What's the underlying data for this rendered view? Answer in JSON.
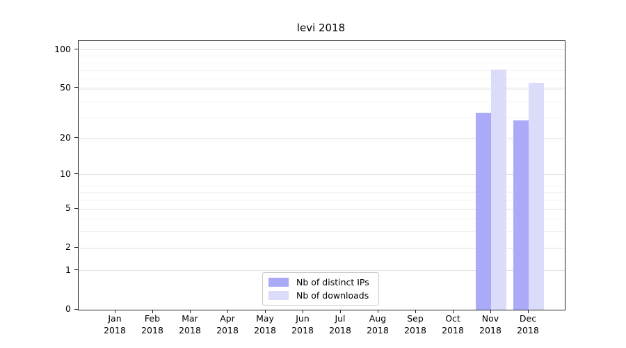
{
  "title": "levi 2018",
  "chart_data": {
    "type": "bar",
    "title": "levi 2018",
    "categories": [
      "Jan",
      "Feb",
      "Mar",
      "Apr",
      "May",
      "Jun",
      "Jul",
      "Aug",
      "Sep",
      "Oct",
      "Nov",
      "Dec"
    ],
    "year_label": "2018",
    "series": [
      {
        "name": "Nb of distinct IPs",
        "color": "#aaaaf8",
        "values": [
          0,
          0,
          0,
          0,
          0,
          0,
          0,
          0,
          0,
          0,
          32,
          28
        ]
      },
      {
        "name": "Nb of downloads",
        "color": "#dbdbfa",
        "values": [
          0,
          0,
          0,
          0,
          0,
          0,
          0,
          0,
          0,
          0,
          70,
          55
        ]
      }
    ],
    "y_scale": "log10(value+1)",
    "y_ticks": [
      0,
      1,
      2,
      5,
      10,
      20,
      50,
      100
    ],
    "y_minor_gridline_values": [
      1,
      2,
      3,
      4,
      5,
      6,
      7,
      8,
      19,
      29,
      39,
      49,
      59,
      69,
      79,
      89
    ],
    "ylim": [
      0,
      117
    ],
    "grid": true,
    "legend": {
      "position": "lower center",
      "entries": [
        "Nb of distinct IPs",
        "Nb of downloads"
      ]
    },
    "colors": {
      "major_grid": "#dedede",
      "minor_grid": "#f2f2f2",
      "axis": "#222222",
      "text": "#000000"
    }
  }
}
